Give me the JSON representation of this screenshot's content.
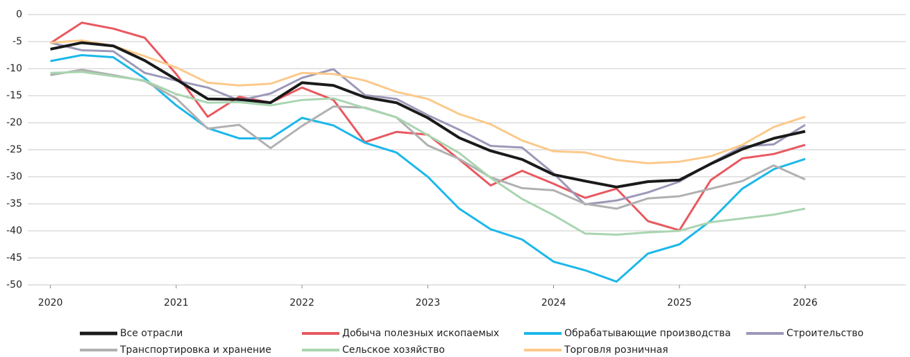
{
  "chart_data": {
    "type": "line",
    "x": [
      2020,
      2020.25,
      2020.5,
      2020.75,
      2021,
      2021.25,
      2021.5,
      2021.75,
      2022,
      2022.25,
      2022.5,
      2022.75,
      2023,
      2023.25,
      2023.5,
      2023.75,
      2024,
      2024.25,
      2024.5,
      2024.75,
      2025,
      2025.25,
      2025.5,
      2025.75,
      2026
    ],
    "xlim": [
      2019.82,
      2026.8
    ],
    "xticks": [
      2020,
      2021,
      2022,
      2023,
      2024,
      2025,
      2026
    ],
    "ylim": [
      -50,
      0
    ],
    "yticks": [
      0,
      -5,
      -10,
      -15,
      -20,
      -25,
      -30,
      -35,
      -40,
      -45,
      -50
    ],
    "grid": true,
    "series": [
      {
        "name": "Все отрасли",
        "color": "#1a1a1a",
        "values": [
          -6.4,
          -5.2,
          -5.8,
          -8.5,
          -12,
          -15.6,
          -15.7,
          -16.3,
          -12.6,
          -13.1,
          -15.3,
          -16.3,
          -19.1,
          -22.8,
          -25.2,
          -26.8,
          -29.6,
          -30.8,
          -31.9,
          -30.9,
          -30.6,
          -27.6,
          -24.9,
          -22.9,
          -21.6
        ]
      },
      {
        "name": "Добыча полезных ископаемых",
        "color": "#e8585f",
        "values": [
          -5.3,
          -1.5,
          -2.6,
          -4.3,
          -11,
          -18.9,
          -15.2,
          -16.3,
          -13.5,
          -15.8,
          -23.6,
          -21.7,
          -22.2,
          -26.8,
          -31.6,
          -28.9,
          -31.3,
          -33.9,
          -32.2,
          -38.2,
          -39.9,
          -30.6,
          -26.6,
          -25.8,
          -24.1
        ]
      },
      {
        "name": "Обрабатывающие производства",
        "color": "#1bb7ea",
        "values": [
          -8.6,
          -7.5,
          -7.9,
          -11.8,
          -16.8,
          -21,
          -22.9,
          -22.9,
          -19.1,
          -20.5,
          -23.7,
          -25.5,
          -30,
          -35.9,
          -39.7,
          -41.6,
          -45.7,
          -47.3,
          -49.4,
          -44.2,
          -42.5,
          -38.1,
          -32.2,
          -28.6,
          -26.7
        ]
      },
      {
        "name": "Строительство",
        "color": "#9b98b8",
        "values": [
          -5.2,
          -6.6,
          -6.8,
          -10.8,
          -12.2,
          -13.5,
          -15.9,
          -14.6,
          -11.7,
          -10.1,
          -14.9,
          -15.6,
          -18.6,
          -21.3,
          -24.3,
          -24.6,
          -29.4,
          -35.1,
          -34.4,
          -32.9,
          -30.9,
          -27.5,
          -24.4,
          -24,
          -20.4
        ]
      },
      {
        "name": "Транспортировка и хранение",
        "color": "#b0b0b0",
        "values": [
          -11.2,
          -10.2,
          -11.2,
          -12.3,
          -15.5,
          -21.1,
          -20.4,
          -24.7,
          -20.6,
          -17,
          -17.2,
          -19,
          -24.2,
          -26.7,
          -30.1,
          -32.1,
          -32.5,
          -35,
          -35.9,
          -34,
          -33.6,
          -32.2,
          -30.8,
          -27.9,
          -30.5
        ]
      },
      {
        "name": "Сельское хозяйство",
        "color": "#a9d5b0",
        "values": [
          -10.8,
          -10.6,
          -11.4,
          -12.2,
          -14.7,
          -16.3,
          -16.2,
          -16.8,
          -15.8,
          -15.5,
          -17.3,
          -19,
          -22.3,
          -25.6,
          -30.2,
          -34.1,
          -37.1,
          -40.5,
          -40.7,
          -40.3,
          -40,
          -38.4,
          -37.7,
          -37,
          -35.9
        ]
      },
      {
        "name": "Торговля розничная",
        "color": "#fcc98a",
        "values": [
          -5.2,
          -4.8,
          -5.8,
          -7.7,
          -9.8,
          -12.6,
          -13.1,
          -12.8,
          -10.8,
          -11,
          -12.2,
          -14.3,
          -15.6,
          -18.4,
          -20.3,
          -23.3,
          -25.3,
          -25.5,
          -26.9,
          -27.5,
          -27.2,
          -26.2,
          -24.1,
          -20.8,
          -18.9
        ]
      }
    ]
  }
}
